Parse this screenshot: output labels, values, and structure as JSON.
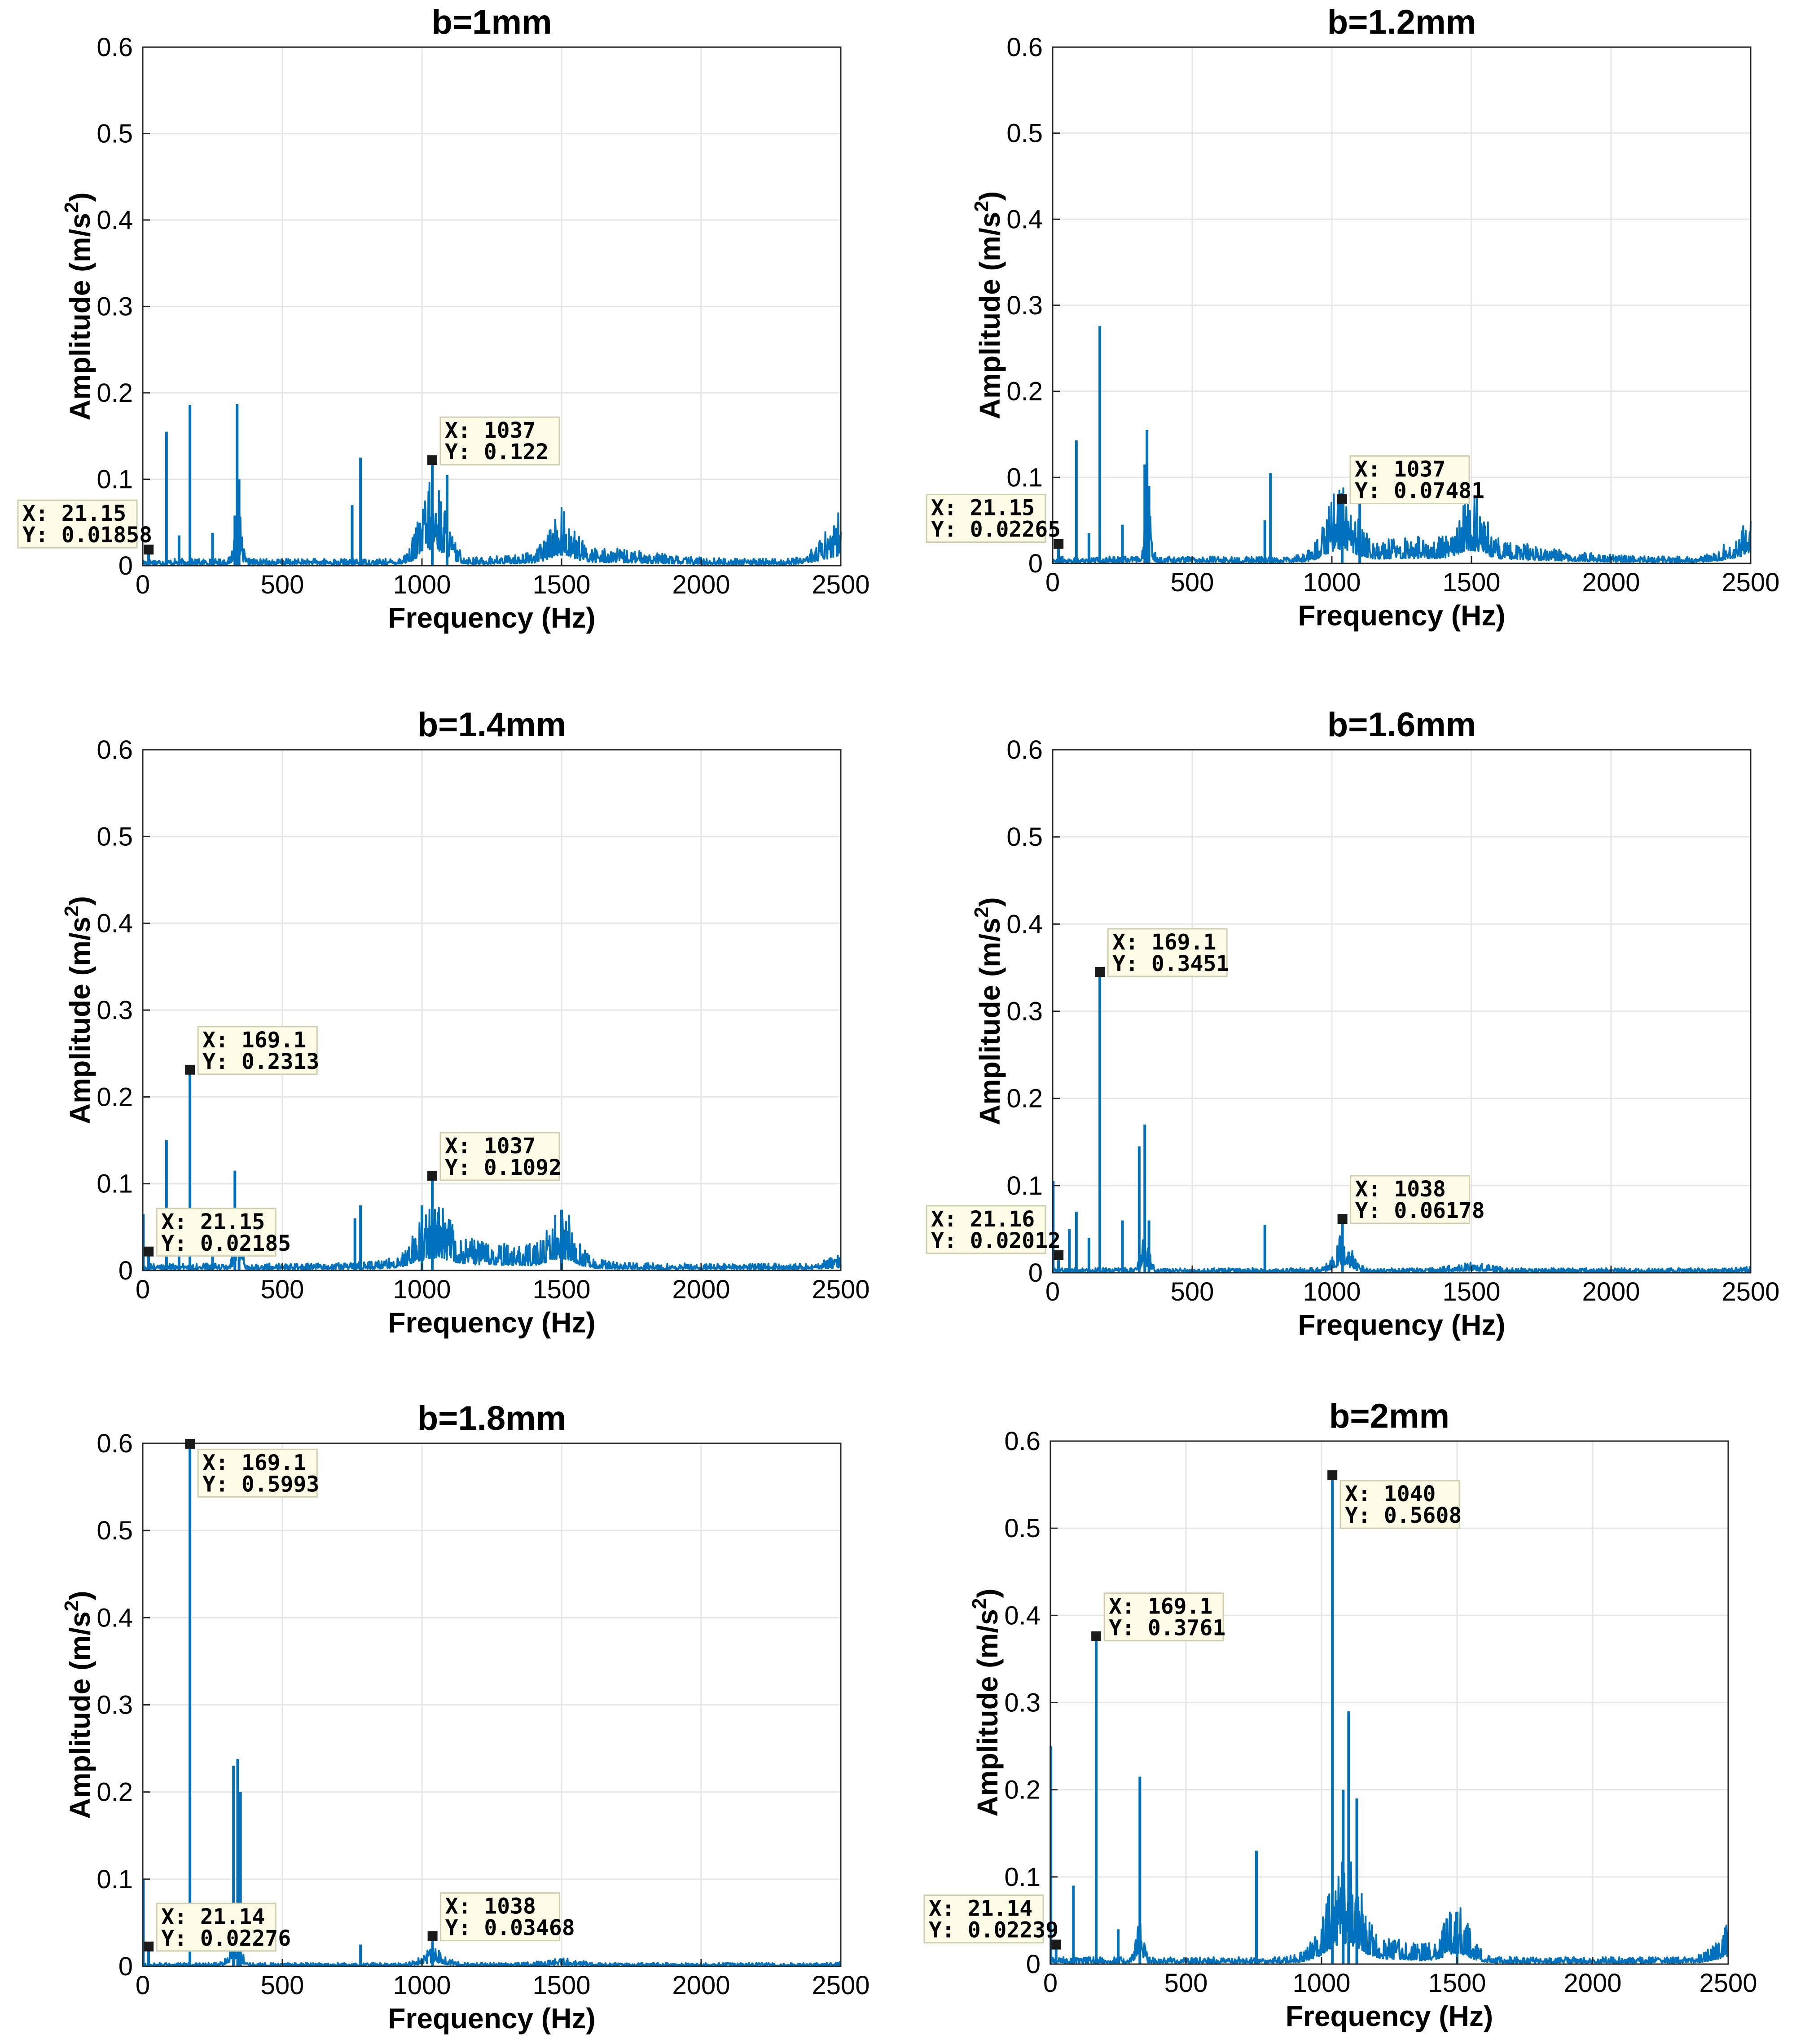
{
  "palette": {
    "line": "#0072BD",
    "grid": "#e6e6e6",
    "axis": "#262626",
    "tip_bg": "#fcfbe6",
    "tip_border": "#cfcfb0",
    "marker": "#1a1a1a"
  },
  "chart_data": [
    {
      "type": "line",
      "title": "b=1mm",
      "xlabel": "Frequency (Hz)",
      "ylabel": "Amplitude (m/s",
      "ylabel_sup": "2",
      "ylabel_end": ")",
      "xlim": [
        0,
        2500
      ],
      "ylim": [
        0,
        0.6
      ],
      "xticks": [
        0,
        500,
        1000,
        1500,
        2000,
        2500
      ],
      "xtick_labels": [
        "0",
        "500",
        "1000",
        "1500",
        "2000",
        "2500"
      ],
      "yticks": [
        0,
        0.1,
        0.2,
        0.3,
        0.4,
        0.5,
        0.6
      ],
      "ytick_labels": [
        "0",
        "0.1",
        "0.2",
        "0.3",
        "0.4",
        "0.5",
        "0.6"
      ],
      "grid": true,
      "datatips": [
        {
          "x": 21.15,
          "y": 0.01858,
          "x_label": "X: 21.15",
          "y_label": "Y: 0.01858",
          "side": "left"
        },
        {
          "x": 1037,
          "y": 0.122,
          "x_label": "X: 1037",
          "y_label": "Y: 0.122",
          "side": "right"
        }
      ],
      "spikes": [
        [
          21,
          0.019
        ],
        [
          85,
          0.155
        ],
        [
          130,
          0.035
        ],
        [
          169,
          0.186
        ],
        [
          250,
          0.038
        ],
        [
          330,
          0.058
        ],
        [
          338,
          0.187
        ],
        [
          345,
          0.1
        ],
        [
          750,
          0.07
        ],
        [
          780,
          0.125
        ],
        [
          1037,
          0.122
        ],
        [
          1090,
          0.105
        ]
      ],
      "humps": [
        [
          340,
          12,
          0.05
        ],
        [
          1040,
          45,
          0.07
        ],
        [
          1500,
          40,
          0.035
        ],
        [
          1600,
          200,
          0.01
        ]
      ],
      "base": 0.006,
      "edge": [
        2300,
        0.045
      ]
    },
    {
      "type": "line",
      "title": "b=1.2mm",
      "xlabel": "Frequency (Hz)",
      "ylabel": "Amplitude (m/s",
      "ylabel_sup": "2",
      "ylabel_end": ")",
      "xlim": [
        0,
        2500
      ],
      "ylim": [
        0,
        0.6
      ],
      "xticks": [
        0,
        500,
        1000,
        1500,
        2000,
        2500
      ],
      "xtick_labels": [
        "0",
        "500",
        "1000",
        "1500",
        "2000",
        "2500"
      ],
      "yticks": [
        0,
        0.1,
        0.2,
        0.3,
        0.4,
        0.5,
        0.6
      ],
      "ytick_labels": [
        "0",
        "0.1",
        "0.2",
        "0.3",
        "0.4",
        "0.5",
        "0.6"
      ],
      "grid": true,
      "datatips": [
        {
          "x": 21.15,
          "y": 0.02265,
          "x_label": "X: 21.15",
          "y_label": "Y: 0.02265",
          "side": "left"
        },
        {
          "x": 1037,
          "y": 0.07481,
          "x_label": "X: 1037",
          "y_label": "Y: 0.07481",
          "side": "right"
        }
      ],
      "spikes": [
        [
          21,
          0.023
        ],
        [
          85,
          0.143
        ],
        [
          130,
          0.035
        ],
        [
          169,
          0.276
        ],
        [
          250,
          0.045
        ],
        [
          330,
          0.115
        ],
        [
          338,
          0.155
        ],
        [
          345,
          0.09
        ],
        [
          760,
          0.05
        ],
        [
          780,
          0.105
        ],
        [
          1037,
          0.075
        ],
        [
          1100,
          0.07
        ]
      ],
      "humps": [
        [
          340,
          12,
          0.05
        ],
        [
          1030,
          50,
          0.055
        ],
        [
          1500,
          45,
          0.04
        ],
        [
          1250,
          150,
          0.015
        ],
        [
          1600,
          200,
          0.012
        ]
      ],
      "base": 0.006,
      "edge": [
        2300,
        0.04
      ]
    },
    {
      "type": "line",
      "title": "b=1.4mm",
      "xlabel": "Frequency (Hz)",
      "ylabel": "Amplitude (m/s",
      "ylabel_sup": "2",
      "ylabel_end": ")",
      "xlim": [
        0,
        2500
      ],
      "ylim": [
        0,
        0.6
      ],
      "xticks": [
        0,
        500,
        1000,
        1500,
        2000,
        2500
      ],
      "xtick_labels": [
        "0",
        "500",
        "1000",
        "1500",
        "2000",
        "2500"
      ],
      "yticks": [
        0,
        0.1,
        0.2,
        0.3,
        0.4,
        0.5,
        0.6
      ],
      "ytick_labels": [
        "0",
        "0.1",
        "0.2",
        "0.3",
        "0.4",
        "0.5",
        "0.6"
      ],
      "grid": true,
      "datatips": [
        {
          "x": 169.1,
          "y": 0.2313,
          "x_label": "X: 169.1",
          "y_label": "Y: 0.2313",
          "side": "right"
        },
        {
          "x": 21.15,
          "y": 0.02185,
          "x_label": "X: 21.15",
          "y_label": "Y: 0.02185",
          "side": "right"
        },
        {
          "x": 1037,
          "y": 0.1092,
          "x_label": "X: 1037",
          "y_label": "Y: 0.1092",
          "side": "right"
        }
      ],
      "spikes": [
        [
          2,
          0.065
        ],
        [
          21,
          0.022
        ],
        [
          85,
          0.15
        ],
        [
          130,
          0.04
        ],
        [
          169,
          0.231
        ],
        [
          250,
          0.04
        ],
        [
          330,
          0.115
        ],
        [
          345,
          0.07
        ],
        [
          760,
          0.06
        ],
        [
          780,
          0.075
        ],
        [
          1000,
          0.075
        ],
        [
          1037,
          0.109
        ],
        [
          1500,
          0.07
        ]
      ],
      "humps": [
        [
          340,
          12,
          0.04
        ],
        [
          1040,
          60,
          0.04
        ],
        [
          1500,
          45,
          0.04
        ],
        [
          1250,
          200,
          0.02
        ]
      ],
      "base": 0.006,
      "edge": [
        2350,
        0.008
      ]
    },
    {
      "type": "line",
      "title": "b=1.6mm",
      "xlabel": "Frequency (Hz)",
      "ylabel": "Amplitude (m/s",
      "ylabel_sup": "2",
      "ylabel_end": ")",
      "xlim": [
        0,
        2500
      ],
      "ylim": [
        0,
        0.6
      ],
      "xticks": [
        0,
        500,
        1000,
        1500,
        2000,
        2500
      ],
      "xtick_labels": [
        "0",
        "500",
        "1000",
        "1500",
        "2000",
        "2500"
      ],
      "yticks": [
        0,
        0.1,
        0.2,
        0.3,
        0.4,
        0.5,
        0.6
      ],
      "ytick_labels": [
        "0",
        "0.1",
        "0.2",
        "0.3",
        "0.4",
        "0.5",
        "0.6"
      ],
      "grid": true,
      "datatips": [
        {
          "x": 169.1,
          "y": 0.3451,
          "x_label": "X: 169.1",
          "y_label": "Y: 0.3451",
          "side": "right"
        },
        {
          "x": 21.16,
          "y": 0.02012,
          "x_label": "X: 21.16",
          "y_label": "Y: 0.02012",
          "side": "left"
        },
        {
          "x": 1038,
          "y": 0.06178,
          "x_label": "X: 1038",
          "y_label": "Y: 0.06178",
          "side": "right"
        }
      ],
      "spikes": [
        [
          2,
          0.105
        ],
        [
          21,
          0.02
        ],
        [
          60,
          0.05
        ],
        [
          85,
          0.07
        ],
        [
          130,
          0.04
        ],
        [
          169,
          0.345
        ],
        [
          250,
          0.06
        ],
        [
          310,
          0.145
        ],
        [
          330,
          0.17
        ],
        [
          345,
          0.06
        ],
        [
          760,
          0.055
        ],
        [
          1038,
          0.062
        ]
      ],
      "humps": [
        [
          330,
          15,
          0.03
        ],
        [
          1040,
          30,
          0.03
        ],
        [
          1500,
          60,
          0.005
        ]
      ],
      "base": 0.004,
      "edge": [
        2400,
        0.002
      ]
    },
    {
      "type": "line",
      "title": "b=1.8mm",
      "xlabel": "Frequency (Hz)",
      "ylabel": "Amplitude (m/s",
      "ylabel_sup": "2",
      "ylabel_end": ")",
      "xlim": [
        0,
        2500
      ],
      "ylim": [
        0,
        0.6
      ],
      "xticks": [
        0,
        500,
        1000,
        1500,
        2000,
        2500
      ],
      "xtick_labels": [
        "0",
        "500",
        "1000",
        "1500",
        "2000",
        "2500"
      ],
      "yticks": [
        0,
        0.1,
        0.2,
        0.3,
        0.4,
        0.5,
        0.6
      ],
      "ytick_labels": [
        "0",
        "0.1",
        "0.2",
        "0.3",
        "0.4",
        "0.5",
        "0.6"
      ],
      "grid": true,
      "datatips": [
        {
          "x": 169.1,
          "y": 0.5993,
          "x_label": "X: 169.1",
          "y_label": "Y: 0.5993",
          "side": "right"
        },
        {
          "x": 21.14,
          "y": 0.02276,
          "x_label": "X: 21.14",
          "y_label": "Y: 0.02276",
          "side": "right"
        },
        {
          "x": 1038,
          "y": 0.03468,
          "x_label": "X: 1038",
          "y_label": "Y: 0.03468",
          "side": "right"
        }
      ],
      "spikes": [
        [
          2,
          0.1
        ],
        [
          21,
          0.023
        ],
        [
          169,
          0.599
        ],
        [
          325,
          0.23
        ],
        [
          340,
          0.238
        ],
        [
          350,
          0.2
        ],
        [
          780,
          0.025
        ],
        [
          1038,
          0.035
        ]
      ],
      "humps": [
        [
          330,
          20,
          0.03
        ],
        [
          1040,
          40,
          0.012
        ],
        [
          1500,
          60,
          0.004
        ]
      ],
      "base": 0.003,
      "edge": [
        2400,
        0.001
      ]
    },
    {
      "type": "line",
      "title": "b=2mm",
      "xlabel": "Frequency (Hz)",
      "ylabel": "Amplitude (m/s",
      "ylabel_sup": "2",
      "ylabel_end": ")",
      "xlim": [
        0,
        2500
      ],
      "ylim": [
        0,
        0.6
      ],
      "xticks": [
        0,
        500,
        1000,
        1500,
        2000,
        2500
      ],
      "xtick_labels": [
        "0",
        "500",
        "1000",
        "1500",
        "2000",
        "2500"
      ],
      "yticks": [
        0,
        0.1,
        0.2,
        0.3,
        0.4,
        0.5,
        0.6
      ],
      "ytick_labels": [
        "0",
        "0.1",
        "0.2",
        "0.3",
        "0.4",
        "0.5",
        "0.6"
      ],
      "grid": true,
      "datatips": [
        {
          "x": 1040,
          "y": 0.5608,
          "x_label": "X: 1040",
          "y_label": "Y: 0.5608",
          "side": "right"
        },
        {
          "x": 169.1,
          "y": 0.3761,
          "x_label": "X: 169.1",
          "y_label": "Y: 0.3761",
          "side": "right"
        },
        {
          "x": 21.14,
          "y": 0.02239,
          "x_label": "X: 21.14",
          "y_label": "Y: 0.02239",
          "side": "left"
        }
      ],
      "spikes": [
        [
          2,
          0.25
        ],
        [
          21,
          0.022
        ],
        [
          85,
          0.09
        ],
        [
          169,
          0.376
        ],
        [
          250,
          0.04
        ],
        [
          330,
          0.215
        ],
        [
          760,
          0.13
        ],
        [
          1040,
          0.561
        ],
        [
          1080,
          0.2
        ],
        [
          1100,
          0.29
        ],
        [
          1130,
          0.19
        ],
        [
          1500,
          0.06
        ]
      ],
      "humps": [
        [
          1080,
          60,
          0.08
        ],
        [
          1500,
          45,
          0.04
        ],
        [
          330,
          12,
          0.04
        ],
        [
          1250,
          150,
          0.015
        ]
      ],
      "base": 0.006,
      "edge": [
        2350,
        0.03
      ]
    }
  ]
}
